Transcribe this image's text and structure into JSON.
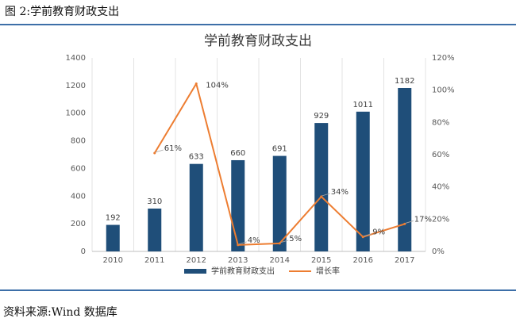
{
  "caption": "图 2:学前教育财政支出",
  "source": "资料来源:Wind 数据库",
  "chart_data": {
    "type": "bar",
    "title": "学前教育财政支出",
    "categories": [
      "2010",
      "2011",
      "2012",
      "2013",
      "2014",
      "2015",
      "2016",
      "2017"
    ],
    "series": [
      {
        "name": "学前教育财政支出",
        "type": "bar",
        "axis": "left",
        "values": [
          192,
          310,
          633,
          660,
          691,
          929,
          1011,
          1182
        ],
        "labels": [
          "192",
          "310",
          "633",
          "660",
          "691",
          "929",
          "1011",
          "1182"
        ],
        "color": "#1f4e79"
      },
      {
        "name": "增长率",
        "type": "line",
        "axis": "right",
        "values": [
          null,
          61,
          104,
          4,
          5,
          34,
          9,
          17
        ],
        "labels": [
          "",
          "61%",
          "104%",
          "4%",
          "5%",
          "34%",
          "9%",
          "17%"
        ],
        "color": "#ed7d31"
      }
    ],
    "y_left": {
      "min": 0,
      "max": 1400,
      "ticks": [
        "0",
        "200",
        "400",
        "600",
        "800",
        "1000",
        "1200",
        "1400"
      ]
    },
    "y_right": {
      "min": 0,
      "max": 120,
      "ticks": [
        "0%",
        "20%",
        "40%",
        "60%",
        "80%",
        "100%",
        "120%"
      ]
    },
    "grid": "vertical",
    "legend_position": "bottom"
  }
}
